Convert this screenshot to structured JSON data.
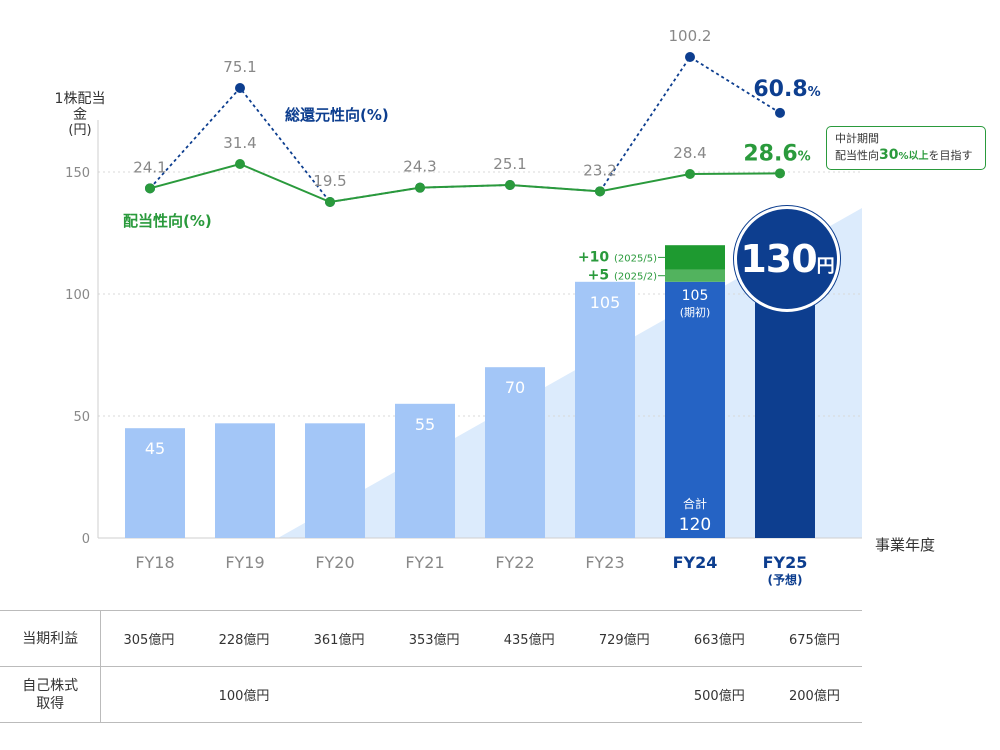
{
  "chart_data": {
    "type": "bar",
    "ylabel": "1株配当金",
    "ylabel_unit": "(円)",
    "ylim": [
      0,
      150
    ],
    "yticks": [
      0,
      50,
      100,
      150
    ],
    "grid": true,
    "categories": [
      "FY18",
      "FY19",
      "FY20",
      "FY21",
      "FY22",
      "FY23",
      "FY24",
      "FY25"
    ],
    "forecast_note": "(予想)",
    "xlabel": "事業年度",
    "dividends": [
      45,
      47,
      47,
      55,
      70,
      105,
      120,
      130
    ],
    "dividend_labels": [
      "45",
      "",
      "",
      "55",
      "70",
      "105",
      "",
      ""
    ],
    "fy24_breakdown": {
      "base_value": 105,
      "base_label": "105",
      "base_note": "(期初)",
      "increments": [
        {
          "value": 5,
          "label": "+5",
          "date": "(2025/2)"
        },
        {
          "value": 10,
          "label": "+10",
          "date": "(2025/5)"
        }
      ],
      "total_label": "合計",
      "total_value": "120"
    },
    "fy25_badge": {
      "value": "130",
      "unit": "円"
    },
    "series_lines": [
      {
        "name": "総還元性向(%)",
        "values": [
          24.1,
          75.1,
          19.5,
          24.3,
          25.1,
          23.2,
          100.2,
          60.8
        ],
        "labels": [
          "",
          "75.1",
          "",
          "",
          "",
          "",
          "100.2",
          "60.8"
        ],
        "last_unit": "%",
        "color": "#0d3e8f"
      },
      {
        "name": "配当性向(%)",
        "values": [
          24.1,
          31.4,
          19.5,
          24.3,
          25.1,
          23.2,
          28.4,
          28.6
        ],
        "labels": [
          "24.1",
          "31.4",
          "19.5",
          "24.3",
          "25.1",
          "23.2",
          "28.4",
          "28.6"
        ],
        "last_unit": "%",
        "color": "#2a9a3c"
      }
    ]
  },
  "callout": {
    "line1": "中計期間",
    "line2_pre": "配当性向",
    "line2_hl": "30",
    "line2_hl_unit": "%以上",
    "line2_post": "を目指す"
  },
  "table": {
    "rows": [
      {
        "header": "当期利益",
        "cells": [
          "305億円",
          "228億円",
          "361億円",
          "353億円",
          "435億円",
          "729億円",
          "663億円",
          "675億円"
        ]
      },
      {
        "header_line1": "自己株式",
        "header_line2": "取得",
        "cells": [
          "",
          "100億円",
          "",
          "",
          "",
          "",
          "500億円",
          "200億円"
        ]
      }
    ]
  },
  "colors": {
    "bar_light": "#a3c6f7",
    "bar_fy24": "#2563c4",
    "bar_fy25": "#0d3e8f",
    "increment_5": "#52b35e",
    "increment_10": "#1e9a30",
    "wedge": "#dcebfc",
    "payout": "#2a9a3c",
    "total_return": "#0d3e8f"
  }
}
